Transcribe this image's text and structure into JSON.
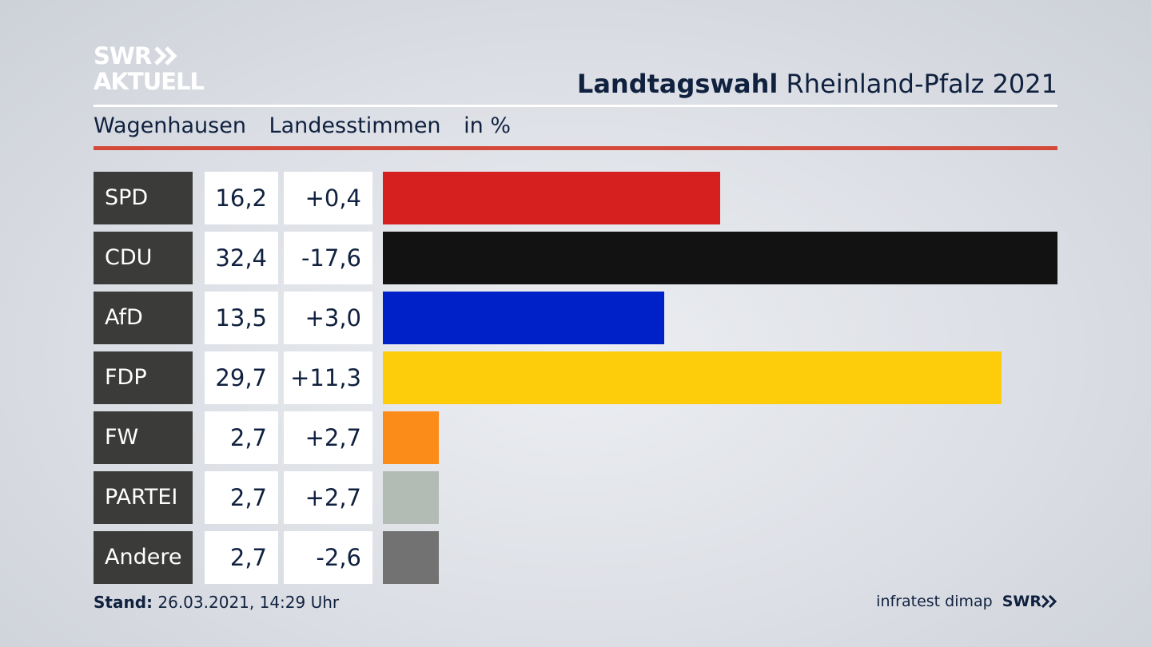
{
  "logo": {
    "line1": "SWR",
    "line2": "AKTUELL"
  },
  "headline": {
    "bold": "Landtagswahl",
    "rest": "Rheinland-Pfalz 2021"
  },
  "subtitle": {
    "place": "Wagenhausen",
    "type": "Landesstimmen",
    "unit": "in %"
  },
  "chart_data": {
    "type": "bar",
    "orientation": "horizontal",
    "title": "Landtagswahl Rheinland-Pfalz 2021",
    "subtitle": "Wagenhausen Landesstimmen in %",
    "categories": [
      "SPD",
      "CDU",
      "AfD",
      "FDP",
      "FW",
      "PARTEI",
      "Andere"
    ],
    "values": [
      16.2,
      32.4,
      13.5,
      29.7,
      2.7,
      2.7,
      2.7
    ],
    "value_labels": [
      "16,2",
      "32,4",
      "13,5",
      "29,7",
      "2,7",
      "2,7",
      "2,7"
    ],
    "changes": [
      0.4,
      -17.6,
      3.0,
      11.3,
      2.7,
      2.7,
      -2.6
    ],
    "change_labels": [
      "+0,4",
      "-17,6",
      "+3,0",
      "+11,3",
      "+2,7",
      "+2,7",
      "-2,6"
    ],
    "colors": [
      "#d61f1f",
      "#121212",
      "#0020c8",
      "#fdcc0a",
      "#fc8c1a",
      "#b3bcb4",
      "#727272"
    ],
    "xlim": [
      0,
      32.4
    ],
    "grid": false,
    "legend": "none"
  },
  "footer": {
    "stand_label": "Stand:",
    "stand_value": "26.03.2021, 14:29 Uhr"
  },
  "credit": {
    "institute": "infratest dimap",
    "broadcaster": "SWR"
  }
}
